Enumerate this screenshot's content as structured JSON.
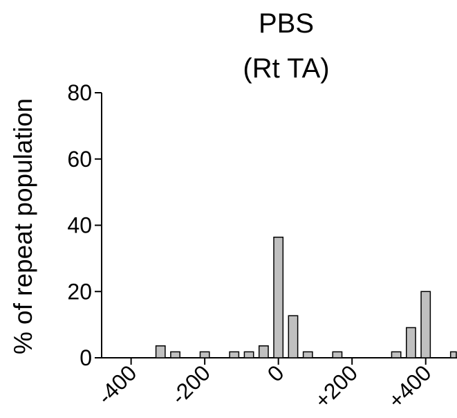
{
  "chart_data": {
    "type": "bar",
    "title": "PBS",
    "subtitle": "(Rt TA)",
    "xlabel": "",
    "ylabel": "% of repeat population",
    "bar_color": "#c0c0c0",
    "xlim": [
      -480,
      485
    ],
    "ylim": [
      0,
      80
    ],
    "x_ticks": [
      -400,
      -200,
      0,
      200,
      400
    ],
    "x_tick_labels": [
      "-400",
      "-200",
      "0",
      "+200",
      "+400"
    ],
    "y_ticks": [
      0,
      20,
      40,
      60,
      80
    ],
    "y_tick_labels": [
      "0",
      "20",
      "40",
      "60",
      "80"
    ],
    "bar_width": 25,
    "x": [
      -320,
      -280,
      -200,
      -120,
      -80,
      -40,
      0,
      40,
      80,
      160,
      320,
      360,
      400,
      480
    ],
    "values": [
      3.6,
      1.8,
      1.8,
      1.8,
      1.8,
      3.6,
      36.4,
      12.7,
      1.8,
      1.8,
      1.8,
      9.1,
      20.0,
      1.8
    ]
  }
}
